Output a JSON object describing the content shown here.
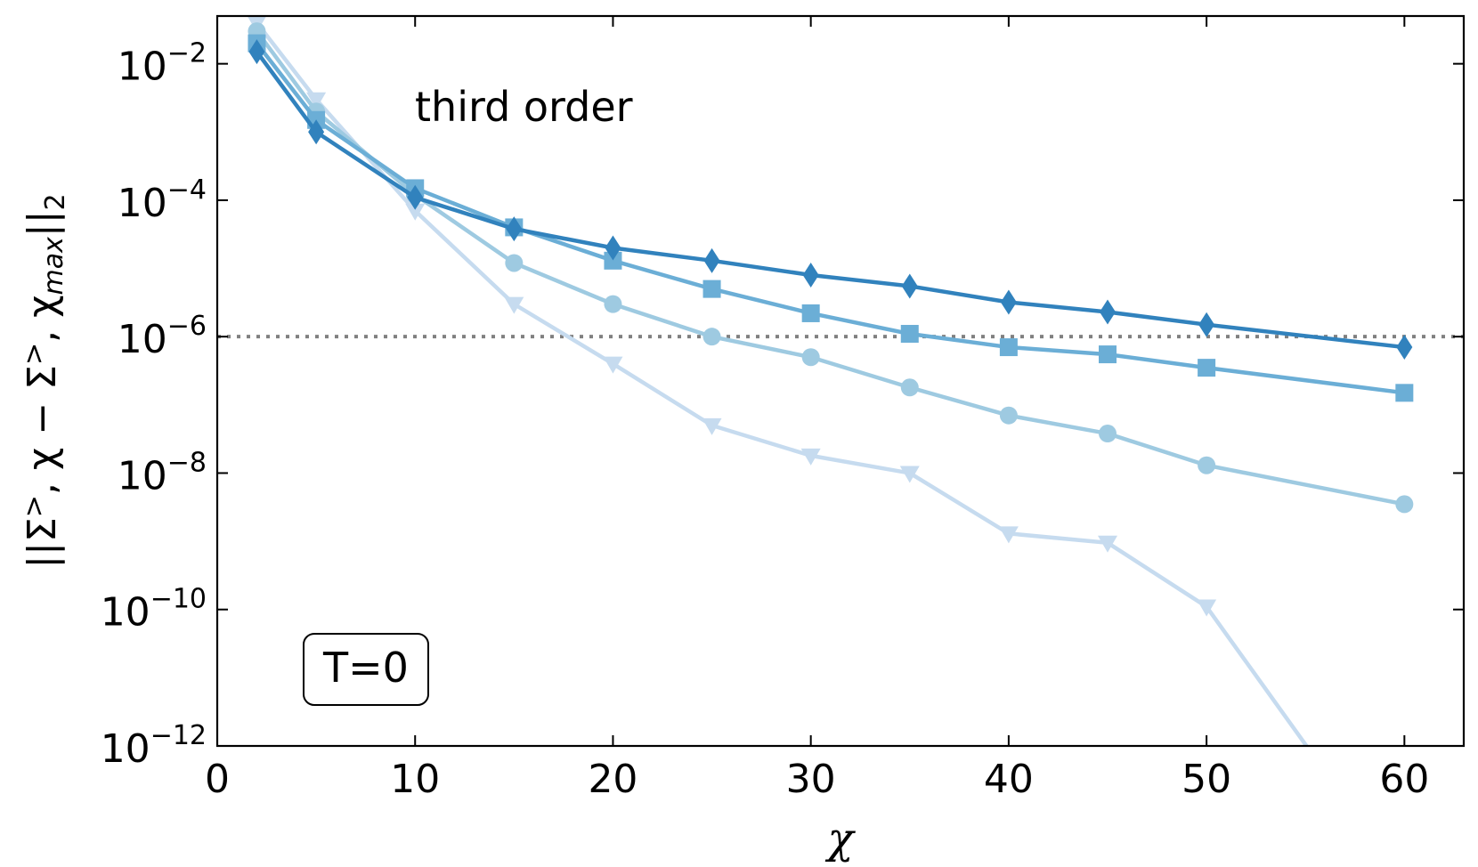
{
  "chart_data": {
    "type": "line",
    "annotation_text": "third order",
    "box_label": "T=0",
    "xlabel": "χ",
    "ylabel": {
      "prefix": "||Σ",
      "sup1": ">",
      "middle1": ", χ − Σ",
      "sup2": ">",
      "middle2": ", χ",
      "sub": "max",
      "suffix": "||",
      "norm_sub": "2"
    },
    "xlim": [
      0,
      63
    ],
    "ylim_log10": [
      -12,
      -1.3
    ],
    "yscale": "log",
    "x_ticks": [
      0,
      10,
      20,
      30,
      40,
      50,
      60
    ],
    "x_tick_labels": [
      "0",
      "10",
      "20",
      "30",
      "40",
      "50",
      "60"
    ],
    "y_ticks_log10": [
      -2,
      -4,
      -6,
      -8,
      -10,
      -12
    ],
    "y_tick_labels": [
      {
        "base": "10",
        "exp": "−2"
      },
      {
        "base": "10",
        "exp": "−4"
      },
      {
        "base": "10",
        "exp": "−6"
      },
      {
        "base": "10",
        "exp": "−8"
      },
      {
        "base": "10",
        "exp": "−10"
      },
      {
        "base": "10",
        "exp": "−12"
      }
    ],
    "reference_line": {
      "y": 1e-06,
      "style": "dotted",
      "color": "#808080"
    },
    "grid": false,
    "series": [
      {
        "marker": "triangle-down",
        "color": "#c6dbef",
        "x": [
          2,
          5,
          10,
          15,
          20,
          25,
          30,
          35,
          40,
          45,
          50,
          60
        ],
        "y": [
          0.04,
          0.003,
          7e-05,
          3e-06,
          4e-07,
          5e-08,
          1.8e-08,
          1e-08,
          1.3e-09,
          9.5e-10,
          1.1e-10,
          1e-14
        ]
      },
      {
        "marker": "circle",
        "color": "#9ecae1",
        "x": [
          2,
          5,
          10,
          15,
          20,
          25,
          30,
          35,
          40,
          45,
          50,
          60
        ],
        "y": [
          0.03,
          0.002,
          0.00012,
          1.2e-05,
          3e-06,
          1e-06,
          5e-07,
          1.8e-07,
          7e-08,
          3.8e-08,
          1.3e-08,
          3.5e-09
        ]
      },
      {
        "marker": "square",
        "color": "#6baed6",
        "x": [
          2,
          5,
          10,
          15,
          20,
          25,
          30,
          35,
          40,
          45,
          50,
          60
        ],
        "y": [
          0.02,
          0.0015,
          0.00015,
          4e-05,
          1.3e-05,
          5e-06,
          2.2e-06,
          1.1e-06,
          7e-07,
          5.5e-07,
          3.5e-07,
          1.5e-07
        ]
      },
      {
        "marker": "diamond",
        "color": "#3182bd",
        "x": [
          2,
          5,
          10,
          15,
          20,
          25,
          30,
          35,
          40,
          45,
          50,
          60
        ],
        "y": [
          0.015,
          0.001,
          0.00011,
          3.8e-05,
          2e-05,
          1.3e-05,
          8e-06,
          5.5e-06,
          3.2e-06,
          2.3e-06,
          1.5e-06,
          7e-07
        ]
      }
    ]
  }
}
